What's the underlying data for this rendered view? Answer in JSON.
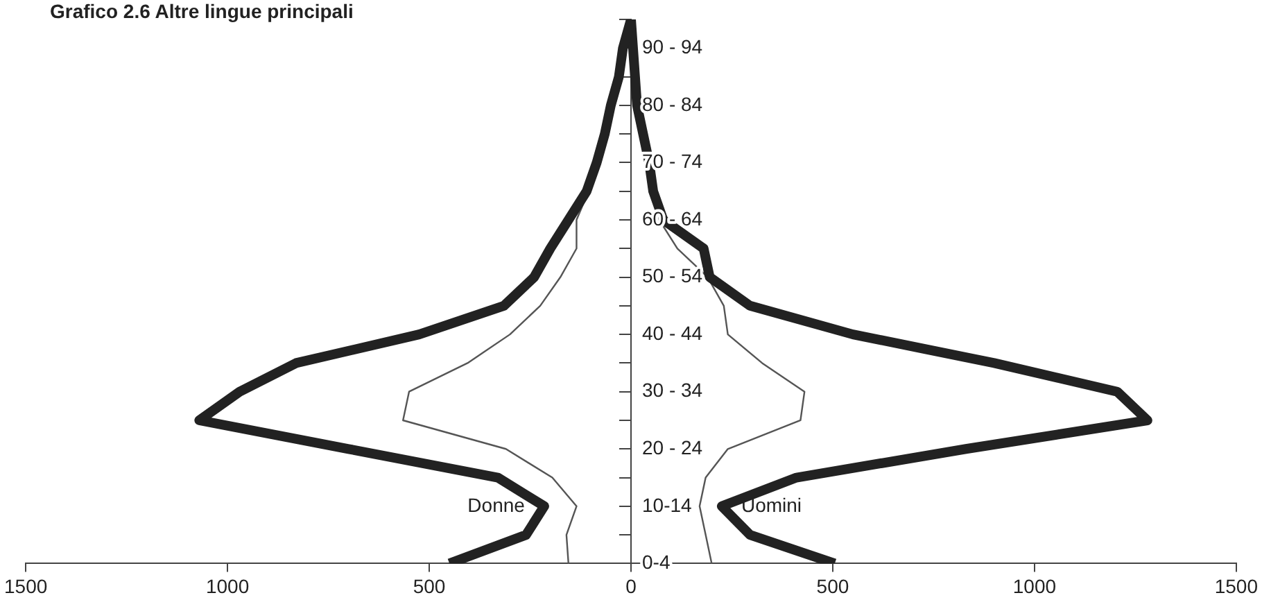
{
  "chart_data": {
    "type": "line",
    "title": "Grafico 2.6   Altre lingue principali",
    "categories": [
      null,
      "90 - 94",
      null,
      "80 - 84",
      null,
      "70 - 74",
      null,
      "60 - 64",
      null,
      "50 - 54",
      null,
      "40 - 44",
      null,
      "30 - 34",
      null,
      "20 - 24",
      null,
      "10-14",
      null,
      "0-4"
    ],
    "orientation": "horizontal",
    "series": [
      {
        "name": "Donne",
        "color": "#222222",
        "values": [
          0,
          -20,
          -30,
          -50,
          -65,
          -85,
          -110,
          -155,
          -200,
          -240,
          -315,
          -525,
          -830,
          -970,
          -1070,
          -700,
          -330,
          -215,
          -260,
          -450
        ]
      },
      {
        "name": "Uomini",
        "color": "#222222",
        "values": [
          0,
          5,
          10,
          15,
          30,
          45,
          55,
          80,
          180,
          195,
          295,
          550,
          900,
          1205,
          1280,
          830,
          410,
          225,
          295,
          505
        ]
      },
      {
        "color": "#555555",
        "values": [
          0,
          -18,
          -28,
          -45,
          -60,
          -80,
          -105,
          -135,
          -135,
          -175,
          -225,
          -300,
          -405,
          -550,
          -565,
          -310,
          -195,
          -135,
          -160,
          -155
        ]
      },
      {
        "color": "#555555",
        "values": [
          0,
          4,
          8,
          12,
          28,
          40,
          50,
          70,
          115,
          190,
          230,
          240,
          325,
          430,
          420,
          240,
          185,
          170,
          185,
          200
        ]
      }
    ],
    "xlim": [
      -1500,
      1500
    ],
    "xticks": [
      {
        "value": -1500,
        "label": "1500"
      },
      {
        "value": -1000,
        "label": "1000"
      },
      {
        "value": -500,
        "label": "500"
      },
      0,
      500,
      1000,
      1500
    ],
    "grid": false,
    "legend": false,
    "marker": "none",
    "line_style": "solid"
  }
}
